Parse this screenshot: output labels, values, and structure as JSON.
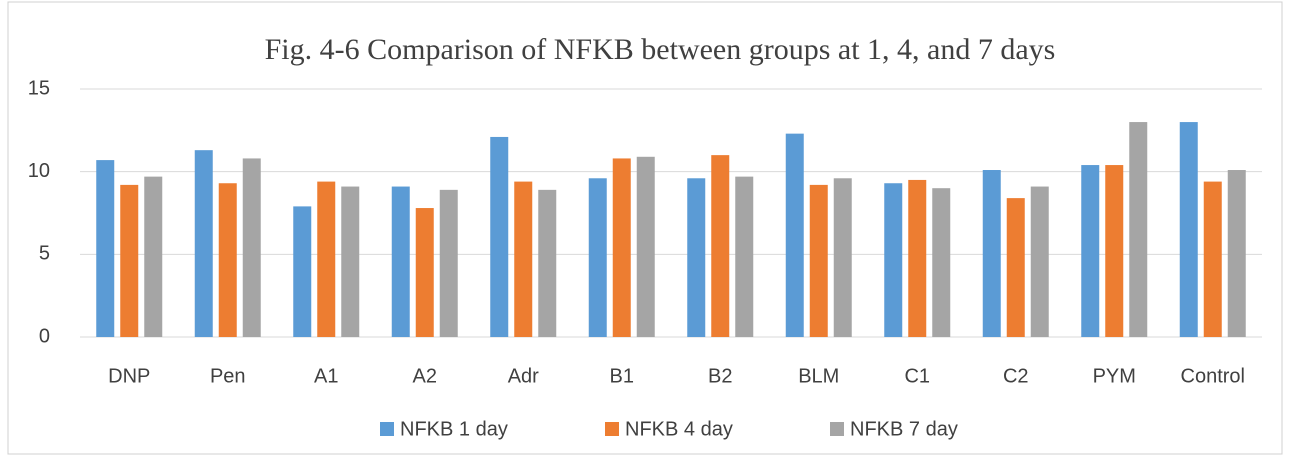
{
  "chart_data": {
    "type": "bar",
    "title": "Fig. 4-6 Comparison of NFKB  between groups at 1, 4, and 7 days",
    "categories": [
      "DNP",
      "Pen",
      "A1",
      "A2",
      "Adr",
      "B1",
      "B2",
      "BLM",
      "C1",
      "C2",
      "PYM",
      "Control"
    ],
    "series": [
      {
        "name": "NFKB 1 day",
        "color": "#5b9bd5",
        "values": [
          10.7,
          11.3,
          7.9,
          9.1,
          12.1,
          9.6,
          9.6,
          12.3,
          9.3,
          10.1,
          10.4,
          13.0
        ]
      },
      {
        "name": "NFKB 4 day",
        "color": "#ed7d31",
        "values": [
          9.2,
          9.3,
          9.4,
          7.8,
          9.4,
          10.8,
          11.0,
          9.2,
          9.5,
          8.4,
          10.4,
          9.4
        ]
      },
      {
        "name": "NFKB 7 day",
        "color": "#a5a5a5",
        "values": [
          9.7,
          10.8,
          9.1,
          8.9,
          8.9,
          10.9,
          9.7,
          9.6,
          9.0,
          9.1,
          13.0,
          10.1
        ]
      }
    ],
    "ylim": [
      0,
      15
    ],
    "yticks": [
      0,
      5,
      10,
      15
    ],
    "grid": true,
    "legend": "bottom"
  }
}
